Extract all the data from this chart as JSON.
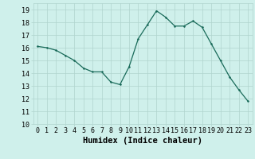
{
  "x": [
    0,
    1,
    2,
    3,
    4,
    5,
    6,
    7,
    8,
    9,
    10,
    11,
    12,
    13,
    14,
    15,
    16,
    17,
    18,
    19,
    20,
    21,
    22,
    23
  ],
  "y": [
    16.1,
    16.0,
    15.8,
    15.4,
    15.0,
    14.4,
    14.1,
    14.1,
    13.3,
    13.1,
    14.5,
    16.7,
    17.8,
    18.9,
    18.4,
    17.7,
    17.7,
    18.1,
    17.6,
    16.3,
    15.0,
    13.7,
    12.7,
    11.8
  ],
  "ylim_min": 10,
  "ylim_max": 19.5,
  "yticks": [
    10,
    11,
    12,
    13,
    14,
    15,
    16,
    17,
    18,
    19
  ],
  "xticks": [
    0,
    1,
    2,
    3,
    4,
    5,
    6,
    7,
    8,
    9,
    10,
    11,
    12,
    13,
    14,
    15,
    16,
    17,
    18,
    19,
    20,
    21,
    22,
    23
  ],
  "xlabel": "Humidex (Indice chaleur)",
  "line_color": "#1a6b5a",
  "marker_color": "#1a6b5a",
  "bg_color": "#cff0eb",
  "grid_color": "#b0d4ce",
  "tick_fontsize": 6,
  "label_fontsize": 7.5
}
